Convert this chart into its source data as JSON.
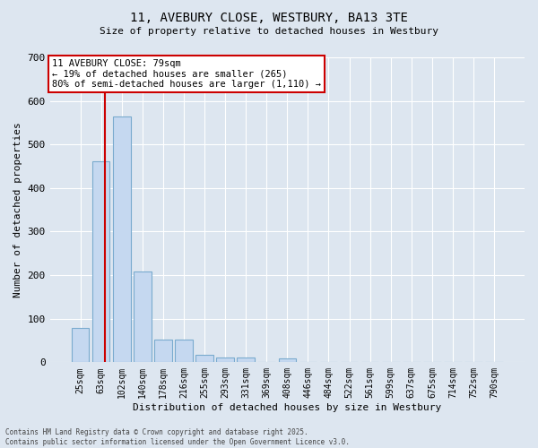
{
  "title_line1": "11, AVEBURY CLOSE, WESTBURY, BA13 3TE",
  "title_line2": "Size of property relative to detached houses in Westbury",
  "xlabel": "Distribution of detached houses by size in Westbury",
  "ylabel": "Number of detached properties",
  "bin_labels": [
    "25sqm",
    "63sqm",
    "102sqm",
    "140sqm",
    "178sqm",
    "216sqm",
    "255sqm",
    "293sqm",
    "331sqm",
    "369sqm",
    "408sqm",
    "446sqm",
    "484sqm",
    "522sqm",
    "561sqm",
    "599sqm",
    "637sqm",
    "675sqm",
    "714sqm",
    "752sqm",
    "790sqm"
  ],
  "bar_values": [
    78,
    462,
    565,
    208,
    52,
    52,
    18,
    10,
    10,
    0,
    8,
    0,
    0,
    0,
    0,
    0,
    0,
    0,
    0,
    0,
    0
  ],
  "bar_color": "#c5d8f0",
  "bar_edge_color": "#7aabce",
  "background_color": "#dde6f0",
  "vline_x_index": 1.18,
  "vline_color": "#cc0000",
  "annotation_text": "11 AVEBURY CLOSE: 79sqm\n← 19% of detached houses are smaller (265)\n80% of semi-detached houses are larger (1,110) →",
  "annotation_box_color": "white",
  "annotation_box_edge_color": "#cc0000",
  "ylim": [
    0,
    700
  ],
  "yticks": [
    0,
    100,
    200,
    300,
    400,
    500,
    600,
    700
  ],
  "footer_line1": "Contains HM Land Registry data © Crown copyright and database right 2025.",
  "footer_line2": "Contains public sector information licensed under the Open Government Licence v3.0."
}
